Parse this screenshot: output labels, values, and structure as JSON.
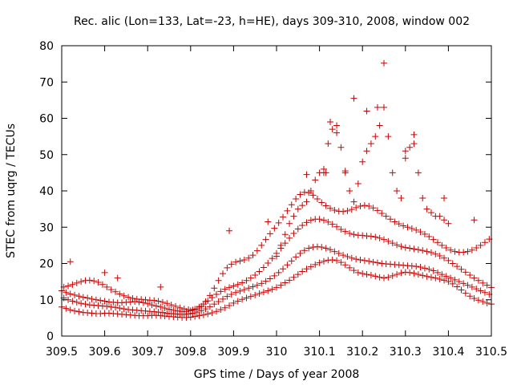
{
  "chart_data": {
    "type": "scatter",
    "title": "Rec. alic (Lon=133, Lat=-23, h=HE), days 309-310, 2008, window 002",
    "xlabel": "GPS time / Days of year 2008",
    "ylabel": "STEC from uqrg / TECUs",
    "xlim": [
      309.5,
      310.5
    ],
    "ylim": [
      0,
      80
    ],
    "xticks": [
      309.5,
      309.6,
      309.7,
      309.8,
      309.9,
      310,
      310.1,
      310.2,
      310.3,
      310.4,
      310.5
    ],
    "xtick_labels": [
      "309.5",
      "309.6",
      "309.7",
      "309.8",
      "309.9",
      "310",
      "310.1",
      "310.2",
      "310.3",
      "310.4",
      "310.5"
    ],
    "yticks": [
      0,
      10,
      20,
      30,
      40,
      50,
      60,
      70,
      80
    ],
    "ytick_labels": [
      "0",
      "10",
      "20",
      "30",
      "40",
      "50",
      "60",
      "70",
      "80"
    ],
    "grid": false,
    "legend": "none",
    "marker": "plus",
    "color": "#cc0000",
    "series": [
      {
        "name": "",
        "x": [
          309.5,
          309.51,
          309.52,
          309.53,
          309.54,
          309.55,
          309.56,
          309.57,
          309.58,
          309.59,
          309.6,
          309.61,
          309.62,
          309.63,
          309.64,
          309.65,
          309.66,
          309.67,
          309.68,
          309.69,
          309.7,
          309.71,
          309.72,
          309.73,
          309.74,
          309.75,
          309.76,
          309.77,
          309.78,
          309.79,
          309.8,
          309.81,
          309.82,
          309.83,
          309.84,
          309.85,
          309.86,
          309.87,
          309.88,
          309.89,
          309.9,
          309.91,
          309.92,
          309.93,
          309.94,
          309.95,
          309.96,
          309.97,
          309.98,
          309.99,
          310,
          310.01,
          310.02,
          310.03,
          310.04,
          310.05,
          310.06,
          310.07,
          310.08,
          310.09,
          310.1,
          310.11,
          310.12,
          310.13,
          310.14,
          310.15,
          310.16,
          310.17,
          310.18,
          310.19,
          310.2,
          310.21,
          310.22,
          310.23,
          310.24,
          310.25,
          310.26,
          310.27,
          310.28,
          310.29,
          310.3,
          310.31,
          310.32,
          310.33,
          310.34,
          310.35,
          310.36,
          310.37,
          310.38,
          310.39,
          310.4,
          310.41,
          310.42,
          310.43,
          310.44,
          310.45,
          310.46,
          310.47,
          310.48,
          310.49,
          310.5
        ],
        "y": [
          8,
          7.6,
          7.2,
          6.9,
          6.7,
          6.5,
          6.4,
          6.3,
          6.2,
          6.2,
          6.3,
          6.3,
          6.2,
          6.1,
          6,
          5.9,
          5.8,
          5.7,
          5.6,
          5.6,
          5.6,
          5.7,
          5.7,
          5.6,
          5.5,
          5.4,
          5.3,
          5.2,
          5.1,
          5.1,
          5.2,
          5.4,
          5.6,
          5.8,
          6.1,
          6.4,
          6.8,
          7.3,
          7.8,
          8.4,
          9.1,
          9.6,
          10.1,
          10.5,
          10.9,
          11.3,
          11.7,
          12.1,
          12.5,
          12.9,
          13.4,
          14,
          14.7,
          15.4,
          16.2,
          17,
          17.8,
          18.5,
          19.1,
          19.7,
          20.2,
          20.6,
          20.9,
          21,
          20.8,
          20.3,
          19.6,
          18.8,
          18.1,
          17.5,
          17.2,
          17,
          16.8,
          16.5,
          16.2,
          16,
          16.2,
          16.6,
          17,
          17.4,
          17.6,
          17.5,
          17.3,
          17,
          16.7,
          16.4,
          16.2,
          16,
          15.7,
          15.4,
          15,
          14.4,
          13.6,
          12.7,
          11.8,
          11,
          10.4,
          9.9,
          9.5,
          9.1,
          8.8
        ]
      },
      {
        "name": "",
        "x": [
          309.505,
          309.515,
          309.525,
          309.535,
          309.545,
          309.555,
          309.565,
          309.575,
          309.585,
          309.595,
          309.605,
          309.615,
          309.625,
          309.635,
          309.645,
          309.655,
          309.665,
          309.675,
          309.685,
          309.695,
          309.705,
          309.715,
          309.725,
          309.735,
          309.745,
          309.755,
          309.765,
          309.775,
          309.785,
          309.795,
          309.805,
          309.815,
          309.825,
          309.835,
          309.845,
          309.855,
          309.865,
          309.875,
          309.885,
          309.895,
          309.905,
          309.915,
          309.925,
          309.935,
          309.945,
          309.955,
          309.965,
          309.975,
          309.985,
          309.995,
          310.005,
          310.015,
          310.025,
          310.035,
          310.045,
          310.055,
          310.065,
          310.075,
          310.085,
          310.095,
          310.105,
          310.115,
          310.125,
          310.135,
          310.145,
          310.155,
          310.165,
          310.175,
          310.185,
          310.195,
          310.205,
          310.215,
          310.225,
          310.235,
          310.245,
          310.255,
          310.265,
          310.275,
          310.285,
          310.295,
          310.305,
          310.315,
          310.325,
          310.335,
          310.345,
          310.355,
          310.365,
          310.375,
          310.385,
          310.395,
          310.405,
          310.415,
          310.425,
          310.435,
          310.445,
          310.455,
          310.465,
          310.475,
          310.485,
          310.495
        ],
        "y": [
          10.5,
          10,
          9.6,
          9.3,
          9,
          8.8,
          8.6,
          8.5,
          8.4,
          8.3,
          8.2,
          8,
          7.9,
          7.7,
          7.5,
          7.3,
          7.2,
          7.1,
          7,
          6.9,
          6.8,
          6.7,
          6.6,
          6.5,
          6.3,
          6.2,
          6.1,
          6,
          6,
          6.1,
          6.3,
          6.6,
          7,
          7.5,
          8.1,
          8.8,
          9.5,
          10.2,
          10.9,
          11.5,
          12,
          12.4,
          12.8,
          13.2,
          13.6,
          14,
          14.5,
          15.1,
          15.8,
          16.6,
          17.5,
          18.5,
          19.6,
          20.7,
          21.8,
          22.8,
          23.6,
          24.2,
          24.5,
          24.6,
          24.5,
          24.2,
          23.8,
          23.3,
          22.8,
          22.3,
          21.9,
          21.5,
          21.2,
          21,
          20.8,
          20.6,
          20.4,
          20.2,
          20,
          19.9,
          19.8,
          19.7,
          19.6,
          19.5,
          19.4,
          19.3,
          19.2,
          19,
          18.7,
          18.4,
          18,
          17.5,
          17,
          16.5,
          16,
          15.5,
          15,
          14.5,
          14,
          13.5,
          13,
          12.5,
          12,
          11.5
        ]
      },
      {
        "name": "",
        "x": [
          309.5,
          309.51,
          309.52,
          309.53,
          309.54,
          309.55,
          309.56,
          309.57,
          309.58,
          309.59,
          309.6,
          309.61,
          309.62,
          309.63,
          309.64,
          309.65,
          309.66,
          309.67,
          309.68,
          309.69,
          309.7,
          309.71,
          309.72,
          309.73,
          309.74,
          309.75,
          309.76,
          309.77,
          309.78,
          309.79,
          309.8,
          309.81,
          309.82,
          309.83,
          309.84,
          309.85,
          309.86,
          309.87,
          309.88,
          309.89,
          309.9,
          309.91,
          309.92,
          309.93,
          309.94,
          309.95,
          309.96,
          309.97,
          309.98,
          309.99,
          310,
          310.01,
          310.02,
          310.03,
          310.04,
          310.05,
          310.06,
          310.07,
          310.08,
          310.09,
          310.1,
          310.11,
          310.12,
          310.13,
          310.14,
          310.15,
          310.16,
          310.17,
          310.18,
          310.19,
          310.2,
          310.21,
          310.22,
          310.23,
          310.24,
          310.25,
          310.26,
          310.27,
          310.28,
          310.29,
          310.3,
          310.31,
          310.32,
          310.33,
          310.34,
          310.35,
          310.36,
          310.37,
          310.38,
          310.39,
          310.4,
          310.41,
          310.42,
          310.43,
          310.44,
          310.45,
          310.46,
          310.47,
          310.48,
          310.49,
          310.5
        ],
        "y": [
          12.5,
          12,
          11.6,
          11.3,
          11,
          10.7,
          10.5,
          10.2,
          10,
          9.8,
          9.6,
          9.4,
          9.3,
          9.2,
          9.2,
          9.3,
          9.4,
          9.5,
          9.4,
          9.2,
          8.9,
          8.6,
          8.3,
          8,
          7.7,
          7.4,
          7.1,
          6.9,
          6.8,
          6.8,
          7,
          7.4,
          8,
          8.8,
          9.7,
          10.6,
          11.5,
          12.3,
          12.9,
          13.4,
          13.8,
          14.2,
          14.7,
          15.3,
          16,
          16.8,
          17.8,
          18.9,
          20.1,
          21.4,
          22.8,
          24.2,
          25.6,
          27,
          28.3,
          29.5,
          30.5,
          31.3,
          31.9,
          32.2,
          32.2,
          31.9,
          31.4,
          30.8,
          30.1,
          29.4,
          28.8,
          28.3,
          28,
          27.8,
          27.7,
          27.6,
          27.5,
          27.3,
          27,
          26.6,
          26.1,
          25.6,
          25.1,
          24.7,
          24.4,
          24.2,
          24,
          23.8,
          23.6,
          23.3,
          23,
          22.6,
          22.1,
          21.5,
          20.8,
          20,
          19.2,
          18.4,
          17.6,
          16.8,
          16,
          15.3,
          14.6,
          14,
          13.4
        ]
      },
      {
        "name": "",
        "x": [
          309.505,
          309.515,
          309.525,
          309.535,
          309.545,
          309.555,
          309.565,
          309.575,
          309.585,
          309.595,
          309.605,
          309.615,
          309.625,
          309.635,
          309.645,
          309.655,
          309.665,
          309.675,
          309.685,
          309.695,
          309.705,
          309.715,
          309.725,
          309.735,
          309.745,
          309.755,
          309.765,
          309.775,
          309.785,
          309.795,
          309.805,
          309.815,
          309.825,
          309.835,
          309.845,
          309.855,
          309.865,
          309.875,
          309.885,
          309.895,
          309.905,
          309.915,
          309.925,
          309.935,
          309.945,
          309.955,
          309.965,
          309.975,
          309.985,
          309.995,
          310.005,
          310.015,
          310.025,
          310.035,
          310.045,
          310.055,
          310.065,
          310.075,
          310.085,
          310.095,
          310.105,
          310.115,
          310.125,
          310.135,
          310.145,
          310.155,
          310.165,
          310.175,
          310.185,
          310.195,
          310.205,
          310.215,
          310.225,
          310.235,
          310.245,
          310.255,
          310.265,
          310.275,
          310.285,
          310.295,
          310.305,
          310.315,
          310.325,
          310.335,
          310.345,
          310.355,
          310.365,
          310.375,
          310.385,
          310.395,
          310.405,
          310.415,
          310.425,
          310.435,
          310.445,
          310.455,
          310.465,
          310.475,
          310.485,
          310.495
        ],
        "y": [
          13.5,
          13.8,
          14.2,
          14.6,
          15,
          15.3,
          15.4,
          15.2,
          14.8,
          14.2,
          13.5,
          12.8,
          12.2,
          11.6,
          11.1,
          10.7,
          10.4,
          10.2,
          10.1,
          10,
          9.9,
          9.8,
          9.6,
          9.3,
          9,
          8.6,
          8.2,
          7.8,
          7.5,
          7.3,
          7.2,
          7.5,
          8.2,
          9.5,
          11.2,
          13.2,
          15.3,
          17.2,
          18.8,
          19.8,
          20.4,
          20.7,
          21,
          21.5,
          22.3,
          23.5,
          25,
          26.6,
          28.2,
          29.7,
          31.2,
          32.8,
          34.5,
          36.2,
          37.8,
          39,
          39.6,
          39.5,
          38.8,
          37.8,
          36.8,
          35.9,
          35.2,
          34.7,
          34.4,
          34.3,
          34.5,
          34.9,
          35.4,
          35.8,
          36,
          35.8,
          35.3,
          34.6,
          33.8,
          33,
          32.2,
          31.5,
          30.9,
          30.4,
          30,
          29.6,
          29.2,
          28.7,
          28.1,
          27.4,
          26.6,
          25.8,
          25,
          24.3,
          23.7,
          23.3,
          23.1,
          23.1,
          23.3,
          23.7,
          24.3,
          25,
          25.8,
          26.7
        ]
      },
      {
        "name": "",
        "x": [
          310.0,
          310.01,
          310.02,
          310.03,
          310.04,
          310.05,
          310.06,
          310.07,
          310.08,
          310.09,
          310.1,
          310.11,
          310.12,
          310.13,
          310.14,
          310.15,
          310.16,
          310.17,
          310.18,
          310.19,
          310.2,
          310.21,
          310.22,
          310.23,
          310.24,
          310.25,
          310.26,
          310.27,
          310.28,
          310.29,
          310.3,
          310.31,
          310.32,
          310.33,
          310.34,
          310.35,
          310.36,
          310.37,
          310.38,
          310.39,
          310.4
        ],
        "y": [
          22,
          25,
          28,
          31,
          33,
          35,
          36,
          37,
          40,
          43,
          45,
          46,
          53,
          57,
          58,
          52,
          45,
          40,
          37,
          42,
          48,
          51,
          53,
          55,
          58,
          63,
          55,
          45,
          40,
          38,
          49,
          52,
          53,
          45,
          38,
          35,
          34,
          33,
          33,
          32,
          31
        ]
      },
      {
        "name": "",
        "x": [
          309.52,
          309.6,
          309.63,
          309.73,
          309.89,
          309.98,
          310.07,
          310.11,
          310.115,
          310.125,
          310.14,
          310.16,
          310.18,
          310.21,
          310.235,
          310.25,
          310.3,
          310.32,
          310.39,
          310.46
        ],
        "y": [
          20.5,
          17.5,
          16,
          13.5,
          29,
          31.5,
          44.5,
          45,
          45,
          59,
          56,
          45.5,
          65.5,
          62,
          63,
          75.2,
          51,
          55.5,
          38,
          32
        ]
      }
    ]
  }
}
